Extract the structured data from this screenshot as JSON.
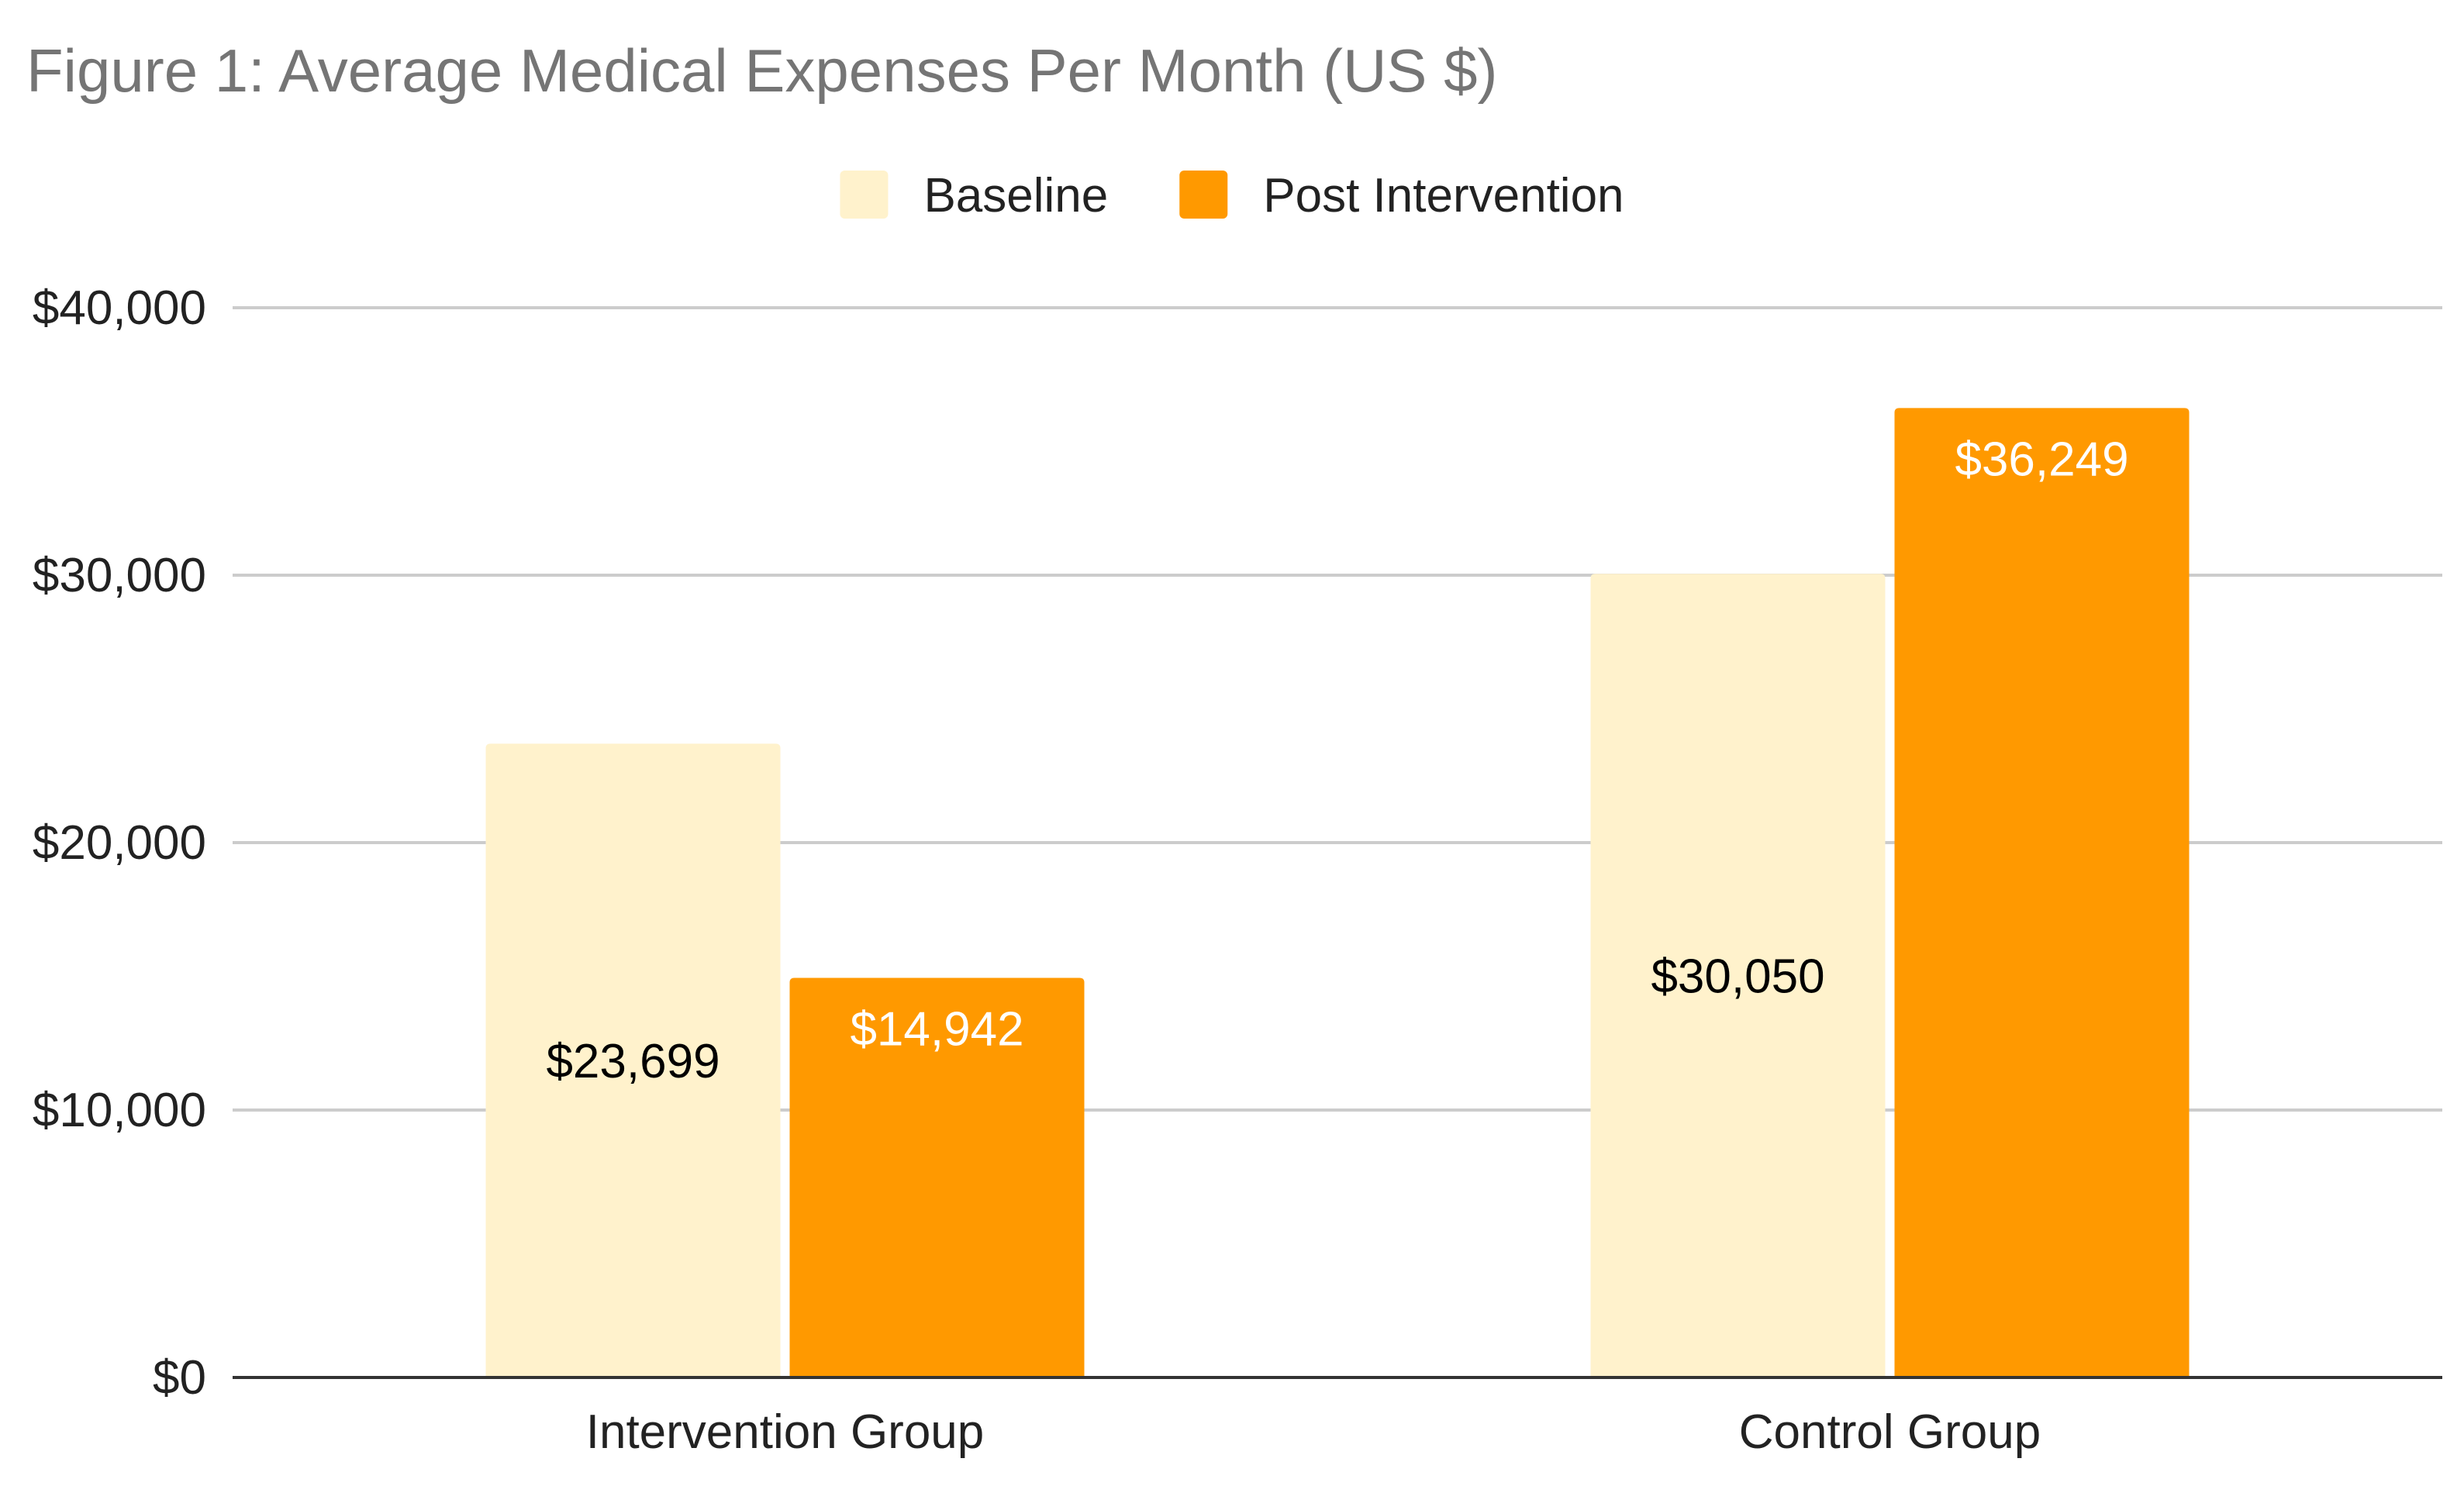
{
  "chart_data": {
    "type": "bar",
    "title": "Figure 1: Average Medical Expenses Per Month (US $)",
    "categories": [
      "Intervention Group",
      "Control Group"
    ],
    "series": [
      {
        "name": "Baseline",
        "color": "#fff2cc",
        "label_color": "#000000",
        "values": [
          23699,
          30050
        ],
        "value_labels": [
          "$23,699",
          "$30,050"
        ]
      },
      {
        "name": "Post Intervention",
        "color": "#ff9900",
        "label_color": "#ffffff",
        "values": [
          14942,
          36249
        ],
        "value_labels": [
          "$14,942",
          "$36,249"
        ]
      }
    ],
    "ylim": [
      0,
      40000
    ],
    "yticks": [
      0,
      10000,
      20000,
      30000,
      40000
    ],
    "ytick_labels": [
      "$0",
      "$10,000",
      "$20,000",
      "$30,000",
      "$40,000"
    ],
    "xlabel": "",
    "ylabel": "",
    "grid": true,
    "legend_position": "top-center"
  }
}
